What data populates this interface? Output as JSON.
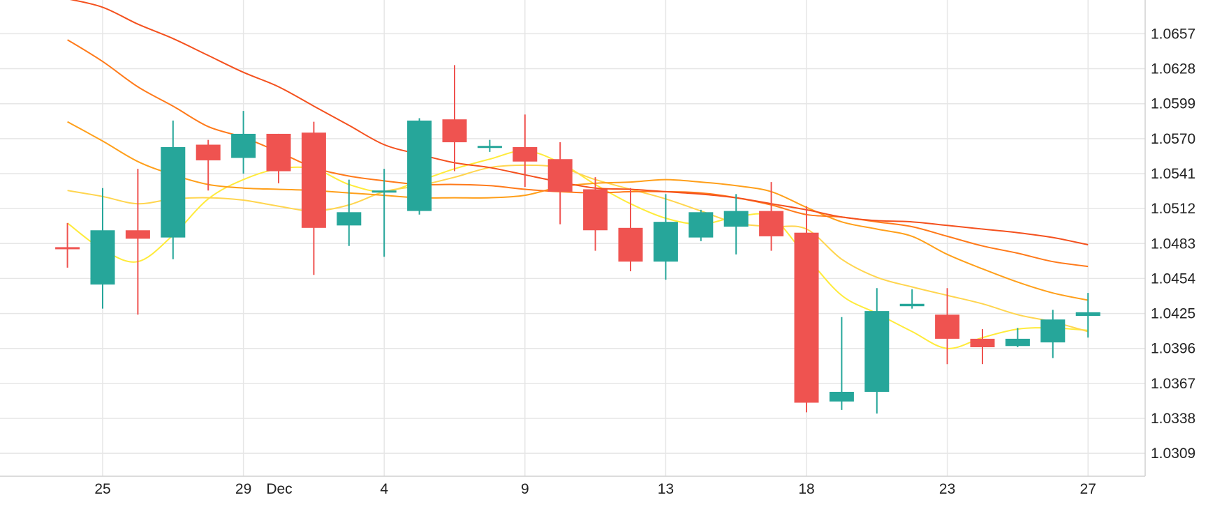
{
  "chart_data": {
    "type": "candlestick",
    "title": "",
    "xlabel": "",
    "ylabel": "",
    "x_tick_labels": [
      {
        "x": 0,
        "label": "25"
      },
      {
        "x": 4,
        "label": "29"
      },
      {
        "x": 5,
        "label": "Dec"
      },
      {
        "x": 8,
        "label": "4"
      },
      {
        "x": 12,
        "label": "9"
      },
      {
        "x": 16,
        "label": "13"
      },
      {
        "x": 20,
        "label": "18"
      },
      {
        "x": 24,
        "label": "23"
      },
      {
        "x": 28,
        "label": "27"
      }
    ],
    "y_tick_labels": [
      "1.0657",
      "1.0628",
      "1.0599",
      "1.0570",
      "1.0541",
      "1.0512",
      "1.0483",
      "1.0454",
      "1.0425",
      "1.0396",
      "1.0367",
      "1.0338",
      "1.0309"
    ],
    "y_ticks": [
      1.0657,
      1.0628,
      1.0599,
      1.057,
      1.0541,
      1.0512,
      1.0483,
      1.0454,
      1.0425,
      1.0396,
      1.0367,
      1.0338,
      1.0309
    ],
    "ylim": [
      1.029,
      1.0685
    ],
    "xlim": [
      -1.0,
      29.7
    ],
    "grid": true,
    "colors": {
      "up": "#26a69a",
      "down": "#ef5350",
      "grid": "#e6e6e6",
      "axis": "#d0d0d0"
    },
    "candles": [
      {
        "x": -1,
        "open": 1.048,
        "high": 1.05,
        "low": 1.0463,
        "close": 1.0479
      },
      {
        "x": 0,
        "open": 1.0449,
        "high": 1.0529,
        "low": 1.0429,
        "close": 1.0494
      },
      {
        "x": 1,
        "open": 1.0494,
        "high": 1.0545,
        "low": 1.0424,
        "close": 1.0487
      },
      {
        "x": 2,
        "open": 1.0488,
        "high": 1.0585,
        "low": 1.047,
        "close": 1.0563
      },
      {
        "x": 3,
        "open": 1.0565,
        "high": 1.0569,
        "low": 1.0527,
        "close": 1.0552
      },
      {
        "x": 4,
        "open": 1.0554,
        "high": 1.0593,
        "low": 1.0541,
        "close": 1.0574
      },
      {
        "x": 5,
        "open": 1.0574,
        "high": 1.0574,
        "low": 1.0533,
        "close": 1.0543
      },
      {
        "x": 6,
        "open": 1.0575,
        "high": 1.0584,
        "low": 1.0457,
        "close": 1.0496
      },
      {
        "x": 7,
        "open": 1.0498,
        "high": 1.0536,
        "low": 1.0481,
        "close": 1.0509
      },
      {
        "x": 8,
        "open": 1.0526,
        "high": 1.0545,
        "low": 1.0472,
        "close": 1.0527
      },
      {
        "x": 9,
        "open": 1.051,
        "high": 1.0587,
        "low": 1.0507,
        "close": 1.0585
      },
      {
        "x": 10,
        "open": 1.0586,
        "high": 1.0631,
        "low": 1.0543,
        "close": 1.0567
      },
      {
        "x": 11,
        "open": 1.0563,
        "high": 1.0569,
        "low": 1.0559,
        "close": 1.0564
      },
      {
        "x": 12,
        "open": 1.0563,
        "high": 1.059,
        "low": 1.053,
        "close": 1.0551
      },
      {
        "x": 13,
        "open": 1.0553,
        "high": 1.0567,
        "low": 1.0499,
        "close": 1.0526
      },
      {
        "x": 14,
        "open": 1.0528,
        "high": 1.0538,
        "low": 1.0477,
        "close": 1.0494
      },
      {
        "x": 15,
        "open": 1.0496,
        "high": 1.0529,
        "low": 1.046,
        "close": 1.0468
      },
      {
        "x": 16,
        "open": 1.0468,
        "high": 1.0524,
        "low": 1.0453,
        "close": 1.0501
      },
      {
        "x": 17,
        "open": 1.0488,
        "high": 1.0511,
        "low": 1.0485,
        "close": 1.0509
      },
      {
        "x": 18,
        "open": 1.0497,
        "high": 1.0524,
        "low": 1.0474,
        "close": 1.051
      },
      {
        "x": 19,
        "open": 1.051,
        "high": 1.0534,
        "low": 1.0477,
        "close": 1.0489
      },
      {
        "x": 20,
        "open": 1.0492,
        "high": 1.0514,
        "low": 1.0343,
        "close": 1.0351
      },
      {
        "x": 21,
        "open": 1.0352,
        "high": 1.0422,
        "low": 1.0345,
        "close": 1.036
      },
      {
        "x": 22,
        "open": 1.036,
        "high": 1.0446,
        "low": 1.0342,
        "close": 1.0427
      },
      {
        "x": 23,
        "open": 1.0431,
        "high": 1.0445,
        "low": 1.0429,
        "close": 1.0433
      },
      {
        "x": 24,
        "open": 1.0424,
        "high": 1.0446,
        "low": 1.0383,
        "close": 1.0404
      },
      {
        "x": 25,
        "open": 1.0404,
        "high": 1.0412,
        "low": 1.0383,
        "close": 1.0397
      },
      {
        "x": 26,
        "open": 1.0398,
        "high": 1.0413,
        "low": 1.0397,
        "close": 1.0404
      },
      {
        "x": 27,
        "open": 1.0401,
        "high": 1.0428,
        "low": 1.0388,
        "close": 1.042
      },
      {
        "x": 28,
        "open": 1.0423,
        "high": 1.0442,
        "low": 1.0405,
        "close": 1.0426
      }
    ],
    "series": [
      {
        "color": "#ffeb3b",
        "x": [
          -1,
          0,
          1,
          2,
          3,
          4,
          5,
          6,
          7,
          8,
          9,
          10,
          11,
          12,
          13,
          14,
          15,
          16,
          17,
          18,
          19,
          20,
          21,
          22,
          23,
          24,
          25,
          26,
          27,
          28
        ],
        "values": [
          1.05,
          1.0478,
          1.0468,
          1.049,
          1.052,
          1.0536,
          1.0545,
          1.0545,
          1.0532,
          1.0526,
          1.0535,
          1.0545,
          1.0553,
          1.056,
          1.055,
          1.0532,
          1.0516,
          1.0504,
          1.0499,
          1.0505,
          1.0505,
          1.0472,
          1.044,
          1.0425,
          1.041,
          1.0396,
          1.0405,
          1.0412,
          1.0413,
          1.0411
        ]
      },
      {
        "color": "#ffd54f",
        "x": [
          -1,
          0,
          1,
          2,
          3,
          4,
          5,
          6,
          7,
          8,
          9,
          10,
          11,
          12,
          13,
          14,
          15,
          16,
          17,
          18,
          19,
          20,
          21,
          22,
          23,
          24,
          25,
          26,
          27,
          28
        ],
        "values": [
          1.0527,
          1.0522,
          1.0516,
          1.052,
          1.0521,
          1.0519,
          1.0514,
          1.051,
          1.0515,
          1.0526,
          1.0531,
          1.0538,
          1.0546,
          1.0548,
          1.0546,
          1.0536,
          1.0528,
          1.052,
          1.051,
          1.05,
          1.0497,
          1.0495,
          1.047,
          1.0455,
          1.0447,
          1.044,
          1.0433,
          1.0424,
          1.0418,
          1.041
        ]
      },
      {
        "color": "#ff9f1a",
        "x": [
          -1,
          0,
          1,
          2,
          3,
          4,
          5,
          6,
          7,
          8,
          9,
          10,
          11,
          12,
          13,
          14,
          15,
          16,
          17,
          18,
          19,
          20,
          21,
          22,
          23,
          24,
          25,
          26,
          27,
          28
        ],
        "values": [
          1.0584,
          1.0568,
          1.0551,
          1.054,
          1.0532,
          1.0529,
          1.0528,
          1.0527,
          1.0525,
          1.0523,
          1.0521,
          1.0521,
          1.0521,
          1.0523,
          1.053,
          1.0533,
          1.0534,
          1.0536,
          1.0534,
          1.0531,
          1.0526,
          1.0513,
          1.0501,
          1.0495,
          1.0489,
          1.0474,
          1.0462,
          1.0451,
          1.0442,
          1.0436
        ]
      },
      {
        "color": "#ff7a1a",
        "x": [
          -1,
          0,
          1,
          2,
          3,
          4,
          5,
          6,
          7,
          8,
          9,
          10,
          11,
          12,
          13,
          14,
          15,
          16,
          17,
          18,
          19,
          20,
          21,
          22,
          23,
          24,
          25,
          26,
          27,
          28
        ],
        "values": [
          1.0652,
          1.0634,
          1.0613,
          1.0597,
          1.058,
          1.0571,
          1.0559,
          1.0546,
          1.0539,
          1.0535,
          1.0532,
          1.0532,
          1.0531,
          1.0528,
          1.0526,
          1.0525,
          1.0526,
          1.0526,
          1.0525,
          1.0521,
          1.0515,
          1.0507,
          1.0505,
          1.0501,
          1.0497,
          1.0489,
          1.0481,
          1.0475,
          1.0468,
          1.0464
        ]
      },
      {
        "color": "#f4511e",
        "x": [
          -1,
          0,
          1,
          2,
          3,
          4,
          5,
          6,
          7,
          8,
          9,
          10,
          11,
          12,
          13,
          14,
          15,
          16,
          17,
          18,
          19,
          20,
          21,
          22,
          23,
          24,
          25,
          26,
          27,
          28
        ],
        "values": [
          1.0686,
          1.0679,
          1.0665,
          1.0653,
          1.0639,
          1.0625,
          1.0613,
          1.0597,
          1.0581,
          1.0565,
          1.0557,
          1.055,
          1.0546,
          1.054,
          1.0534,
          1.0529,
          1.0528,
          1.0526,
          1.0524,
          1.0521,
          1.0516,
          1.0511,
          1.0505,
          1.0502,
          1.0501,
          1.0498,
          1.0495,
          1.0492,
          1.0488,
          1.0482
        ]
      }
    ]
  }
}
